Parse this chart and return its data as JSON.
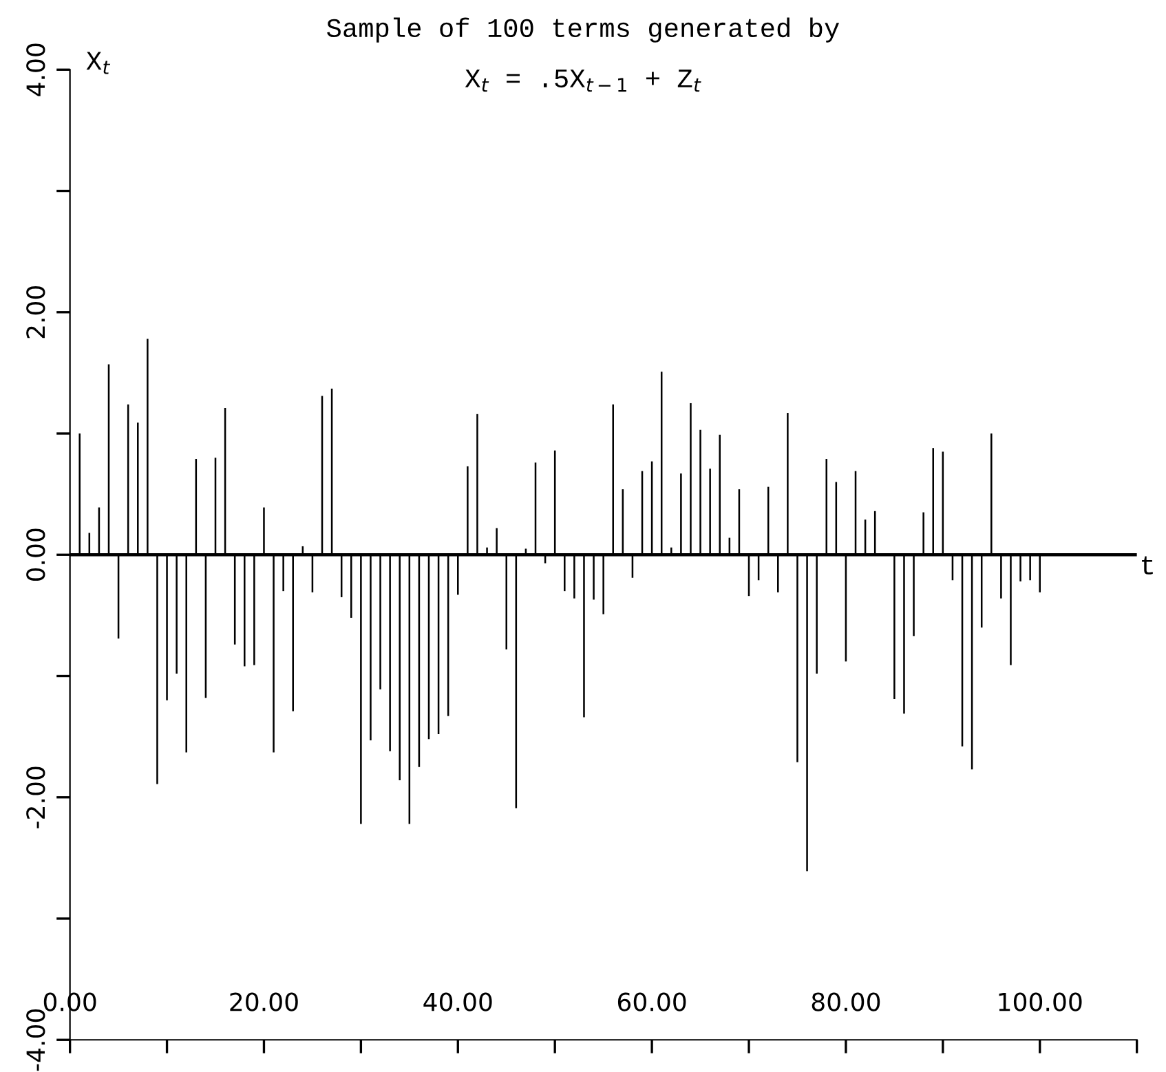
{
  "chart_data": {
    "type": "bar",
    "title": "Sample of 100 terms generated by",
    "subtitle": "X$_{t}$ = .5X$_{t−1}$ + Z$_{t}$",
    "xlabel": "t",
    "ylabel": "X$_{t}$",
    "x": [
      1,
      2,
      3,
      4,
      5,
      6,
      7,
      8,
      9,
      10,
      11,
      12,
      13,
      14,
      15,
      16,
      17,
      18,
      19,
      20,
      21,
      22,
      23,
      24,
      25,
      26,
      27,
      28,
      29,
      30,
      31,
      32,
      33,
      34,
      35,
      36,
      37,
      38,
      39,
      40,
      41,
      42,
      43,
      44,
      45,
      46,
      47,
      48,
      49,
      50,
      51,
      52,
      53,
      54,
      55,
      56,
      57,
      58,
      59,
      60,
      61,
      62,
      63,
      64,
      65,
      66,
      67,
      68,
      69,
      70,
      71,
      72,
      73,
      74,
      75,
      76,
      77,
      78,
      79,
      80,
      81,
      82,
      83,
      84,
      85,
      86,
      87,
      88,
      89,
      90,
      91,
      92,
      93,
      94,
      95,
      96,
      97,
      98,
      99,
      100
    ],
    "series": [
      {
        "color": "#000000",
        "values": [
          1.0,
          0.18,
          0.39,
          1.57,
          -0.69,
          1.24,
          1.09,
          1.78,
          -1.89,
          -1.2,
          -0.98,
          -1.63,
          0.79,
          -1.18,
          0.8,
          1.21,
          -0.74,
          -0.92,
          -0.91,
          0.39,
          -1.63,
          -0.3,
          -1.29,
          0.07,
          -0.31,
          1.31,
          1.37,
          -0.35,
          -0.52,
          -2.22,
          -1.53,
          -1.11,
          -1.62,
          -1.86,
          -2.22,
          -1.75,
          -1.52,
          -1.48,
          -1.33,
          -0.33,
          0.73,
          1.16,
          0.06,
          0.22,
          -0.78,
          -2.09,
          0.05,
          0.76,
          -0.07,
          0.86,
          -0.3,
          -0.36,
          -1.34,
          -0.37,
          -0.49,
          1.24,
          0.54,
          -0.19,
          0.69,
          0.77,
          1.51,
          0.06,
          0.67,
          1.25,
          1.03,
          0.71,
          0.99,
          0.14,
          0.54,
          -0.34,
          -0.21,
          0.56,
          -0.31,
          1.17,
          -1.71,
          -2.61,
          -0.98,
          0.79,
          0.6,
          -0.88,
          0.69,
          0.29,
          0.36,
          null,
          -1.19,
          -1.31,
          -0.67,
          0.35,
          0.88,
          0.85,
          -0.21,
          -1.58,
          -1.77,
          -0.6,
          1.0,
          -0.36,
          -0.91,
          -0.22,
          -0.21,
          -0.31
        ]
      }
    ],
    "xlim": [
      0,
      110
    ],
    "xticks": [
      {
        "value": 0,
        "label": "0.00"
      },
      {
        "value": 10,
        "label": null
      },
      {
        "value": 20,
        "label": "20.00"
      },
      {
        "value": 30,
        "label": null
      },
      {
        "value": 40,
        "label": "40.00"
      },
      {
        "value": 50,
        "label": null
      },
      {
        "value": 60,
        "label": "60.00"
      },
      {
        "value": 70,
        "label": null
      },
      {
        "value": 80,
        "label": "80.00"
      },
      {
        "value": 90,
        "label": null
      },
      {
        "value": 100,
        "label": "100.00"
      },
      {
        "value": 110,
        "label": null
      }
    ],
    "ylim": [
      -4,
      4
    ],
    "yticks": [
      {
        "value": -4,
        "label": "-4.00"
      },
      {
        "value": -3,
        "label": null
      },
      {
        "value": -2,
        "label": "-2.00"
      },
      {
        "value": -1,
        "label": null
      },
      {
        "value": 0,
        "label": "0.00"
      },
      {
        "value": 1,
        "label": null
      },
      {
        "value": 2,
        "label": "2.00"
      },
      {
        "value": 3,
        "label": null
      },
      {
        "value": 4,
        "label": "4.00"
      }
    ],
    "ref_lines": [
      {
        "axis": "y",
        "value": 0,
        "color": "#000000"
      }
    ],
    "grid": false,
    "legend": false
  }
}
